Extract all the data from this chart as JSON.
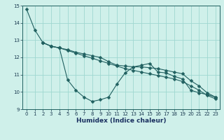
{
  "line1_x": [
    0,
    1,
    2,
    3,
    4,
    5,
    6,
    7,
    8,
    9,
    10,
    11,
    12,
    13,
    14,
    15,
    16,
    17,
    18,
    19,
    20,
    21,
    22,
    23
  ],
  "line1_y": [
    14.8,
    13.6,
    12.85,
    12.65,
    12.55,
    10.7,
    10.1,
    9.7,
    9.45,
    9.55,
    9.7,
    10.45,
    11.1,
    11.45,
    11.55,
    11.65,
    11.15,
    11.1,
    10.9,
    10.75,
    10.1,
    9.95,
    9.85,
    9.7
  ],
  "line2_x": [
    2,
    3,
    4,
    5,
    6,
    7,
    8,
    9,
    10,
    11,
    12,
    13,
    14,
    15,
    16,
    17,
    18,
    19,
    20,
    21,
    22,
    23
  ],
  "line2_y": [
    12.85,
    12.65,
    12.55,
    12.45,
    12.3,
    12.2,
    12.1,
    12.0,
    11.75,
    11.55,
    11.5,
    11.45,
    11.45,
    11.4,
    11.35,
    11.25,
    11.15,
    11.05,
    10.65,
    10.35,
    9.95,
    9.7
  ],
  "line3_x": [
    2,
    3,
    4,
    5,
    6,
    7,
    8,
    9,
    10,
    11,
    12,
    13,
    14,
    15,
    16,
    17,
    18,
    19,
    20,
    21,
    22,
    23
  ],
  "line3_y": [
    12.85,
    12.65,
    12.55,
    12.4,
    12.25,
    12.1,
    11.95,
    11.8,
    11.65,
    11.5,
    11.35,
    11.25,
    11.15,
    11.05,
    10.95,
    10.85,
    10.75,
    10.6,
    10.35,
    10.1,
    9.8,
    9.6
  ],
  "bg_color": "#cff0ea",
  "grid_color": "#9fd8d0",
  "line_color": "#206060",
  "xlabel": "Humidex (Indice chaleur)",
  "xlim": [
    -0.5,
    23.5
  ],
  "ylim": [
    9,
    15
  ],
  "yticks": [
    9,
    10,
    11,
    12,
    13,
    14,
    15
  ],
  "xticks": [
    0,
    1,
    2,
    3,
    4,
    5,
    6,
    7,
    8,
    9,
    10,
    11,
    12,
    13,
    14,
    15,
    16,
    17,
    18,
    19,
    20,
    21,
    22,
    23
  ]
}
